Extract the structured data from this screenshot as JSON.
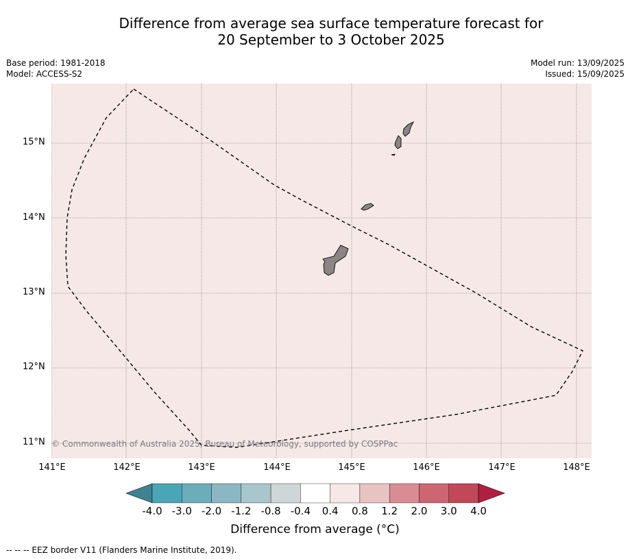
{
  "title_line1": "Difference from average sea surface temperature forecast for",
  "title_line2": "20 September to 3 October 2025",
  "meta_left": [
    "Base period: 1981-2018",
    "Model: ACCESS-S2"
  ],
  "meta_right": [
    "Model run: 13/09/2025",
    "Issued: 15/09/2025"
  ],
  "copyright": "© Commonwealth of Australia 2025, Bureau of Meteorology, supported by COSPPac",
  "map": {
    "lon_range": [
      141.0,
      148.2
    ],
    "lat_range": [
      10.8,
      15.8
    ],
    "background_color": "#f5e8e7",
    "land_color": "#8c8584",
    "lat_labels": [
      "15°N",
      "14°N",
      "13°N",
      "12°N",
      "11°N"
    ],
    "lon_labels": [
      "141°E",
      "142°E",
      "143°E",
      "144°E",
      "145°E",
      "146°E",
      "147°E",
      "148°E"
    ]
  },
  "colorbar": {
    "label": "Difference from average (°C)",
    "ticks": [
      "-4.0",
      "-3.0",
      "-2.0",
      "-1.2",
      "-0.8",
      "-0.4",
      "0.4",
      "0.8",
      "1.2",
      "2.0",
      "3.0",
      "4.0"
    ],
    "colors": [
      "#3f8390",
      "#4aa5b6",
      "#6cadbc",
      "#8ab7c3",
      "#a8c6cb",
      "#cfd6d8",
      "#ffffff",
      "#f5e8e7",
      "#e8c4c1",
      "#d98c94",
      "#cd6572",
      "#c14859",
      "#b21f3e"
    ]
  },
  "footer": "--  --  -- EEZ border V11 (Flanders Marine Institute, 2019)."
}
